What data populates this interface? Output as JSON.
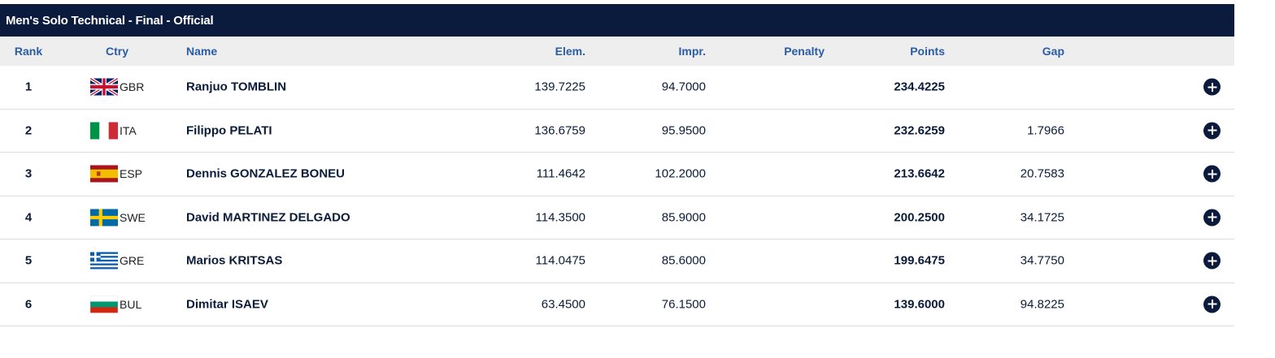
{
  "title": "Men's Solo Technical - Final  -  Official",
  "columns": {
    "rank": "Rank",
    "ctry": "Ctry",
    "name": "Name",
    "elem": "Elem.",
    "impr": "Impr.",
    "penalty": "Penalty",
    "points": "Points",
    "gap": "Gap"
  },
  "rows": [
    {
      "rank": "1",
      "ctry": "GBR",
      "flag": "gbr-flag-icon",
      "name": "Ranjuo TOMBLIN",
      "elem": "139.7225",
      "impr": "94.7000",
      "penalty": "",
      "points": "234.4225",
      "gap": ""
    },
    {
      "rank": "2",
      "ctry": "ITA",
      "flag": "ita-flag-icon",
      "name": "Filippo PELATI",
      "elem": "136.6759",
      "impr": "95.9500",
      "penalty": "",
      "points": "232.6259",
      "gap": "1.7966"
    },
    {
      "rank": "3",
      "ctry": "ESP",
      "flag": "esp-flag-icon",
      "name": "Dennis GONZALEZ BONEU",
      "elem": "111.4642",
      "impr": "102.2000",
      "penalty": "",
      "points": "213.6642",
      "gap": "20.7583"
    },
    {
      "rank": "4",
      "ctry": "SWE",
      "flag": "swe-flag-icon",
      "name": "David MARTINEZ DELGADO",
      "elem": "114.3500",
      "impr": "85.9000",
      "penalty": "",
      "points": "200.2500",
      "gap": "34.1725"
    },
    {
      "rank": "5",
      "ctry": "GRE",
      "flag": "gre-flag-icon",
      "name": "Marios KRITSAS",
      "elem": "114.0475",
      "impr": "85.6000",
      "penalty": "",
      "points": "199.6475",
      "gap": "34.7750"
    },
    {
      "rank": "6",
      "ctry": "BUL",
      "flag": "bul-flag-icon",
      "name": "Dimitar ISAEV",
      "elem": "63.4500",
      "impr": "76.1500",
      "penalty": "",
      "points": "139.6000",
      "gap": "94.8225"
    }
  ],
  "row_action_icon": "plus-circle-icon",
  "colors": {
    "title_bg": "#0b1b3d",
    "header_bg": "#eeeeee",
    "header_text": "#2a5ca8",
    "body_text": "#0b1c3a"
  }
}
